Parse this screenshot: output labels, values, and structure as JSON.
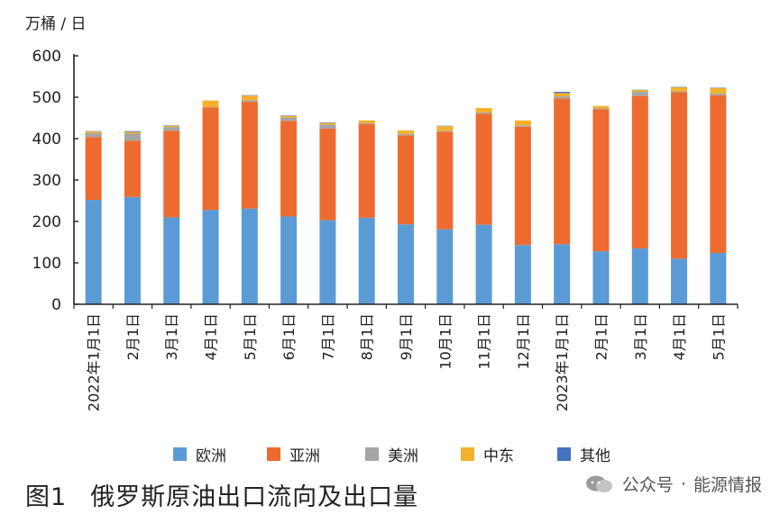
{
  "unit_label": "万桶 / 日",
  "caption": {
    "number": "图1",
    "text": "俄罗斯原油出口流向及出口量"
  },
  "watermark": {
    "dot": "·",
    "account": "公众号",
    "name": "能源情报"
  },
  "legend": [
    {
      "name": "欧洲",
      "color": "#5b9bd5"
    },
    {
      "name": "亚洲",
      "color": "#ed6b2f"
    },
    {
      "name": "美洲",
      "color": "#a5a5a5"
    },
    {
      "name": "中东",
      "color": "#f5b12b"
    },
    {
      "name": "其他",
      "color": "#4472c4"
    }
  ],
  "chart_data": {
    "type": "bar",
    "stacked": true,
    "ylim": [
      0,
      600
    ],
    "yticks": [
      "0",
      "100",
      "200",
      "300",
      "400",
      "500",
      "600"
    ],
    "ylabel": "万桶 / 日",
    "categories": [
      "2022年1月1日",
      "2月1日",
      "3月1日",
      "4月1日",
      "5月1日",
      "6月1日",
      "7月1日",
      "8月1日",
      "9月1日",
      "10月1日",
      "11月1日",
      "12月1日",
      "2023年1月1日",
      "2月1日",
      "3月1日",
      "4月1日",
      "5月1日"
    ],
    "series": [
      {
        "name": "欧洲",
        "color": "#5b9bd5",
        "values": [
          252,
          259,
          210,
          228,
          231,
          212,
          203,
          209,
          193,
          181,
          192,
          143,
          145,
          128,
          135,
          110,
          124
        ]
      },
      {
        "name": "亚洲",
        "color": "#ed6b2f",
        "values": [
          152,
          136,
          209,
          247,
          258,
          231,
          221,
          226,
          215,
          236,
          268,
          286,
          352,
          343,
          368,
          402,
          381
        ]
      },
      {
        "name": "美洲",
        "color": "#a5a5a5",
        "values": [
          9,
          17,
          9,
          1,
          4,
          8,
          10,
          2,
          3,
          2,
          3,
          3,
          5,
          2,
          10,
          2,
          4
        ]
      },
      {
        "name": "中东",
        "color": "#f5b12b",
        "values": [
          4,
          4,
          3,
          16,
          11,
          4,
          4,
          7,
          9,
          11,
          11,
          12,
          8,
          6,
          4,
          10,
          13
        ]
      },
      {
        "name": "其他",
        "color": "#4472c4",
        "values": [
          1,
          2,
          1,
          0,
          1,
          1,
          1,
          0,
          0,
          1,
          0,
          0,
          3,
          0,
          1,
          1,
          1
        ]
      }
    ]
  }
}
